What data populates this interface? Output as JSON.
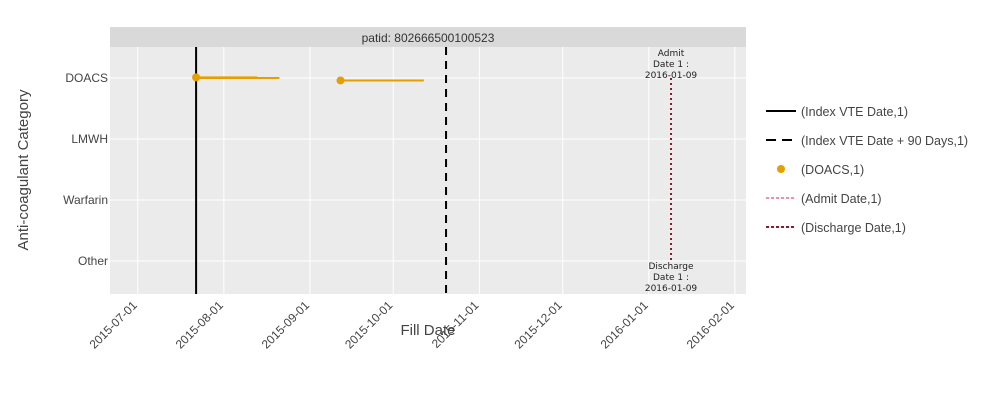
{
  "chart_data": {
    "type": "timeline",
    "panel_title": "patid: 802666500100523",
    "xlabel": "Fill Date",
    "ylabel": "Anti-coagulant Category",
    "categories": [
      "DOACS",
      "LMWH",
      "Warfarin",
      "Other"
    ],
    "x_range": [
      "2015-06-21",
      "2016-02-05"
    ],
    "x_ticks": [
      "2015-07-01",
      "2015-08-01",
      "2015-09-01",
      "2015-10-01",
      "2015-11-01",
      "2015-12-01",
      "2016-01-01",
      "2016-02-01"
    ],
    "grid": true,
    "legend_position": "right",
    "segments": [
      {
        "category": "DOACS",
        "start": "2015-07-22",
        "end": "2015-08-21",
        "dy": 0.0
      },
      {
        "category": "DOACS",
        "start": "2015-07-22",
        "end": "2015-08-13",
        "dy": 0.01
      },
      {
        "category": "DOACS",
        "start": "2015-09-12",
        "end": "2015-10-12",
        "dy": -0.04
      }
    ],
    "points": [
      {
        "category": "DOACS",
        "date": "2015-07-22",
        "dy": 0.01,
        "series": "(DOACS,1)"
      },
      {
        "category": "DOACS",
        "date": "2015-09-12",
        "dy": -0.04,
        "series": "(DOACS,1)"
      }
    ],
    "vlines": [
      {
        "date": "2015-07-22",
        "style": "solid",
        "series": "(Index VTE Date,1)"
      },
      {
        "date": "2015-10-20",
        "style": "dash",
        "series": "(Index VTE Date + 90 Days,1)"
      },
      {
        "date": "2016-01-09",
        "style": "dot",
        "series": "(Admit Date,1)"
      },
      {
        "date": "2016-01-09",
        "style": "dot",
        "series": "(Discharge Date,1)"
      }
    ],
    "annotations": [
      {
        "date": "2016-01-09",
        "anchor": "DOACS",
        "lines": [
          "Admit",
          "Date 1 :",
          "2016-01-09"
        ]
      },
      {
        "date": "2016-01-09",
        "anchor": "Other",
        "lines": [
          "Discharge",
          "Date 1 :",
          "2016-01-09"
        ]
      }
    ],
    "legend": [
      {
        "label": "(Index VTE Date,1)",
        "kind": "line",
        "dash": "solid",
        "color": "#000000"
      },
      {
        "label": "(Index VTE Date + 90 Days,1)",
        "kind": "line",
        "dash": "dash",
        "color": "#000000"
      },
      {
        "label": "(DOACS,1)",
        "kind": "marker",
        "color": "#E69F00"
      },
      {
        "label": "(Admit Date,1)",
        "kind": "line",
        "dash": "dot",
        "color": "#F28CB1"
      },
      {
        "label": "(Discharge Date,1)",
        "kind": "line",
        "dash": "dot",
        "color": "#8B1A2B"
      }
    ],
    "colors": {
      "doacs": "#E69F00",
      "index_line": "#000000",
      "admit": "#F28CB1",
      "discharge": "#8B1A2B",
      "panel_bg": "#EBEBEB",
      "strip_bg": "#D9D9D9",
      "grid": "#FFFFFF"
    }
  }
}
